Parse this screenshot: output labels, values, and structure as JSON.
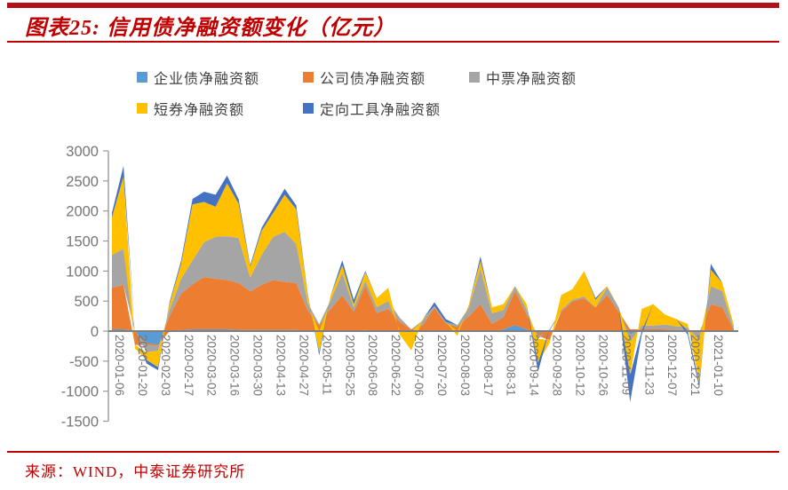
{
  "header": {
    "title": "图表25:  信用债净融资额变化（亿元）"
  },
  "footer": {
    "source": "来源：WIND，中泰证券研究所"
  },
  "accent_color": "#c00000",
  "axis_text_color": "#767676",
  "chart_data": {
    "type": "area",
    "stacking": "diverging",
    "title": "信用债净融资额变化（亿元）",
    "xlabel": "",
    "ylabel": "",
    "ylim": [
      -1500,
      3000
    ],
    "yticks": [
      3000,
      2500,
      2000,
      1500,
      1000,
      500,
      0,
      -500,
      -1000,
      -1500
    ],
    "grid": "zero-line-only",
    "legend_position": "top",
    "n_points": 55,
    "x_label_every": 2,
    "x_tick_labels": [
      "2020-01-06",
      "2020-01-20",
      "2020-02-03",
      "2020-02-17",
      "2020-03-02",
      "2020-03-16",
      "2020-03-30",
      "2020-04-13",
      "2020-04-27",
      "2020-05-11",
      "2020-05-25",
      "2020-06-08",
      "2020-06-22",
      "2020-07-06",
      "2020-07-20",
      "2020-08-03",
      "2020-08-17",
      "2020-08-31",
      "2020-09-14",
      "2020-09-28",
      "2020-10-12",
      "2020-10-26",
      "2020-11-09",
      "2020-11-23",
      "2020-12-07",
      "2020-12-21",
      "2021-01-10"
    ],
    "series": [
      {
        "key": "enterprise-bond",
        "name": "企业债净融资额",
        "color": "#5B9BD5",
        "values": [
          30,
          30,
          0,
          -200,
          -230,
          0,
          20,
          30,
          30,
          30,
          30,
          20,
          20,
          20,
          20,
          20,
          20,
          0,
          0,
          0,
          0,
          0,
          20,
          0,
          0,
          0,
          -10,
          0,
          0,
          0,
          0,
          0,
          0,
          0,
          30,
          100,
          30,
          -30,
          0,
          0,
          0,
          0,
          0,
          0,
          0,
          -50,
          0,
          0,
          0,
          0,
          0,
          0,
          0,
          0,
          0
        ]
      },
      {
        "key": "corporate-bond",
        "name": "公司债净融资额",
        "color": "#ED7D31",
        "values": [
          690,
          740,
          -230,
          -30,
          -20,
          250,
          600,
          750,
          870,
          840,
          820,
          780,
          640,
          750,
          830,
          800,
          780,
          345,
          95,
          370,
          595,
          320,
          740,
          300,
          370,
          150,
          30,
          100,
          390,
          130,
          70,
          250,
          445,
          120,
          200,
          570,
          250,
          -50,
          -150,
          320,
          495,
          545,
          395,
          600,
          320,
          30,
          30,
          30,
          30,
          20,
          20,
          -30,
          445,
          395,
          20
        ]
      },
      {
        "key": "mtn",
        "name": "中票净融资额",
        "color": "#A5A5A5",
        "values": [
          550,
          600,
          0,
          -120,
          -80,
          100,
          250,
          400,
          580,
          700,
          730,
          750,
          230,
          500,
          720,
          830,
          650,
          125,
          20,
          150,
          375,
          75,
          80,
          100,
          130,
          70,
          0,
          80,
          30,
          20,
          30,
          150,
          600,
          175,
          120,
          80,
          80,
          -50,
          30,
          30,
          30,
          30,
          0,
          130,
          75,
          -130,
          60,
          60,
          80,
          60,
          40,
          -130,
          300,
          275,
          20
        ]
      },
      {
        "key": "short-term-notes",
        "name": "短券净融资额",
        "color": "#FFC000",
        "values": [
          625,
          1200,
          -60,
          -130,
          -270,
          100,
          250,
          930,
          670,
          500,
          880,
          570,
          180,
          400,
          400,
          620,
          580,
          125,
          -355,
          80,
          125,
          50,
          140,
          150,
          220,
          -60,
          -310,
          20,
          0,
          0,
          -80,
          50,
          125,
          100,
          100,
          0,
          90,
          -400,
          -50,
          250,
          175,
          425,
          125,
          20,
          0,
          -550,
          280,
          360,
          170,
          120,
          60,
          -700,
          275,
          135,
          60
        ]
      },
      {
        "key": "ppn",
        "name": "定向工具净融资额",
        "color": "#4472C4",
        "values": [
          75,
          180,
          0,
          -60,
          -50,
          30,
          50,
          90,
          170,
          200,
          130,
          75,
          30,
          50,
          75,
          100,
          65,
          25,
          -50,
          0,
          85,
          75,
          20,
          0,
          0,
          0,
          0,
          0,
          60,
          50,
          0,
          0,
          75,
          0,
          0,
          0,
          0,
          -150,
          0,
          0,
          0,
          0,
          30,
          0,
          0,
          -450,
          -60,
          0,
          0,
          0,
          -60,
          -80,
          100,
          0,
          0
        ]
      }
    ]
  }
}
